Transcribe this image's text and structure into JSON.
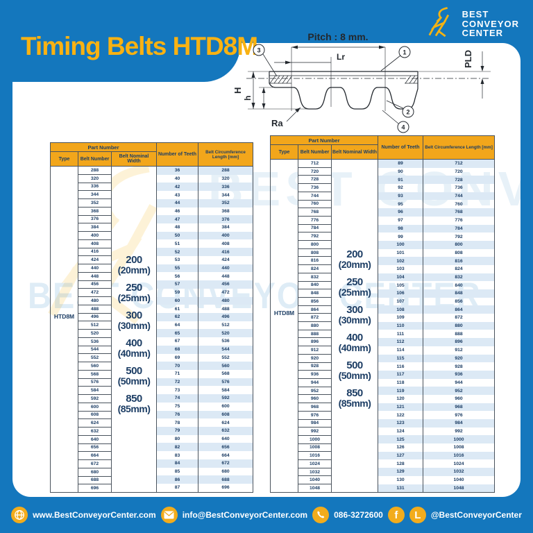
{
  "page": {
    "title": "Timing Belts HTD8M"
  },
  "logo": {
    "line1": "BEST",
    "line2": "CONVEYOR",
    "line3": "CENTER"
  },
  "watermark": {
    "logo_text": "BEST CONVEYOR CENTER",
    "lines": "BEST CONVEYOR CENTER"
  },
  "diagram": {
    "pitch_label": "Pitch : 8 mm.",
    "lr_label": "Lr",
    "pld_label": "PLD",
    "height_label": "H",
    "tooth_height_label": "h",
    "ra_label": "Ra",
    "callouts": [
      "1",
      "2",
      "3",
      "4"
    ]
  },
  "table_header": {
    "part_number": "Part Number",
    "type": "Type",
    "belt_number": "Belt Number",
    "belt_nominal_width": "Belt Nominal Width",
    "number_of_teeth": "Number of Teeth",
    "belt_circumference": "Belt Circumference Length [mm]"
  },
  "width_options": [
    [
      "200",
      "(20mm)"
    ],
    [
      "250",
      "(25mm)"
    ],
    [
      "300",
      "(30mm)"
    ],
    [
      "400",
      "(40mm)"
    ],
    [
      "500",
      "(50mm)"
    ],
    [
      "850",
      "(85mm)"
    ]
  ],
  "tables": [
    {
      "type_label": "HTD8M",
      "rows": [
        [
          288,
          36,
          288
        ],
        [
          320,
          40,
          320
        ],
        [
          336,
          42,
          336
        ],
        [
          344,
          43,
          344
        ],
        [
          352,
          44,
          352
        ],
        [
          368,
          46,
          368
        ],
        [
          376,
          47,
          376
        ],
        [
          384,
          48,
          384
        ],
        [
          400,
          50,
          400
        ],
        [
          408,
          51,
          408
        ],
        [
          416,
          52,
          416
        ],
        [
          424,
          53,
          424
        ],
        [
          440,
          55,
          440
        ],
        [
          448,
          56,
          448
        ],
        [
          456,
          57,
          456
        ],
        [
          472,
          59,
          472
        ],
        [
          480,
          60,
          480
        ],
        [
          488,
          61,
          488
        ],
        [
          496,
          62,
          496
        ],
        [
          512,
          64,
          512
        ],
        [
          520,
          65,
          520
        ],
        [
          536,
          67,
          536
        ],
        [
          544,
          68,
          544
        ],
        [
          552,
          69,
          552
        ],
        [
          560,
          70,
          560
        ],
        [
          568,
          71,
          568
        ],
        [
          576,
          72,
          576
        ],
        [
          584,
          73,
          584
        ],
        [
          592,
          74,
          592
        ],
        [
          600,
          75,
          600
        ],
        [
          608,
          76,
          608
        ],
        [
          624,
          78,
          624
        ],
        [
          632,
          79,
          632
        ],
        [
          640,
          80,
          640
        ],
        [
          656,
          82,
          656
        ],
        [
          664,
          83,
          664
        ],
        [
          672,
          84,
          672
        ],
        [
          680,
          85,
          680
        ],
        [
          688,
          86,
          688
        ],
        [
          696,
          87,
          696
        ]
      ]
    },
    {
      "type_label": "HTD8M",
      "rows": [
        [
          712,
          89,
          712
        ],
        [
          720,
          90,
          720
        ],
        [
          728,
          91,
          728
        ],
        [
          736,
          92,
          736
        ],
        [
          744,
          93,
          744
        ],
        [
          760,
          95,
          760
        ],
        [
          768,
          96,
          768
        ],
        [
          776,
          97,
          776
        ],
        [
          784,
          98,
          784
        ],
        [
          792,
          99,
          792
        ],
        [
          800,
          100,
          800
        ],
        [
          808,
          101,
          808
        ],
        [
          816,
          102,
          816
        ],
        [
          824,
          103,
          824
        ],
        [
          832,
          104,
          832
        ],
        [
          840,
          105,
          840
        ],
        [
          848,
          106,
          848
        ],
        [
          856,
          107,
          856
        ],
        [
          864,
          108,
          864
        ],
        [
          872,
          109,
          872
        ],
        [
          880,
          110,
          880
        ],
        [
          888,
          111,
          888
        ],
        [
          896,
          112,
          896
        ],
        [
          912,
          114,
          912
        ],
        [
          920,
          115,
          920
        ],
        [
          928,
          116,
          928
        ],
        [
          936,
          117,
          936
        ],
        [
          944,
          118,
          944
        ],
        [
          952,
          119,
          952
        ],
        [
          960,
          120,
          960
        ],
        [
          968,
          121,
          968
        ],
        [
          976,
          122,
          976
        ],
        [
          984,
          123,
          984
        ],
        [
          992,
          124,
          992
        ],
        [
          1000,
          125,
          1000
        ],
        [
          1008,
          126,
          1008
        ],
        [
          1016,
          127,
          1016
        ],
        [
          1024,
          128,
          1024
        ],
        [
          1032,
          129,
          1032
        ],
        [
          1040,
          130,
          1040
        ],
        [
          1048,
          131,
          1048
        ]
      ]
    }
  ],
  "footer": {
    "website": "www.BestConveyorCenter.com",
    "email": "info@BestConveyorCenter.com",
    "phone": "086-3272600",
    "social": "@BestConveyorCenter",
    "facebook_glyph": "f",
    "line_glyph": "L"
  },
  "colors": {
    "brand_blue": "#1477BD",
    "brand_yellow": "#F9B212",
    "header_orange": "#F2A61B",
    "navy_text": "#1C3D64",
    "row_stripe": "#DCE9F5"
  }
}
